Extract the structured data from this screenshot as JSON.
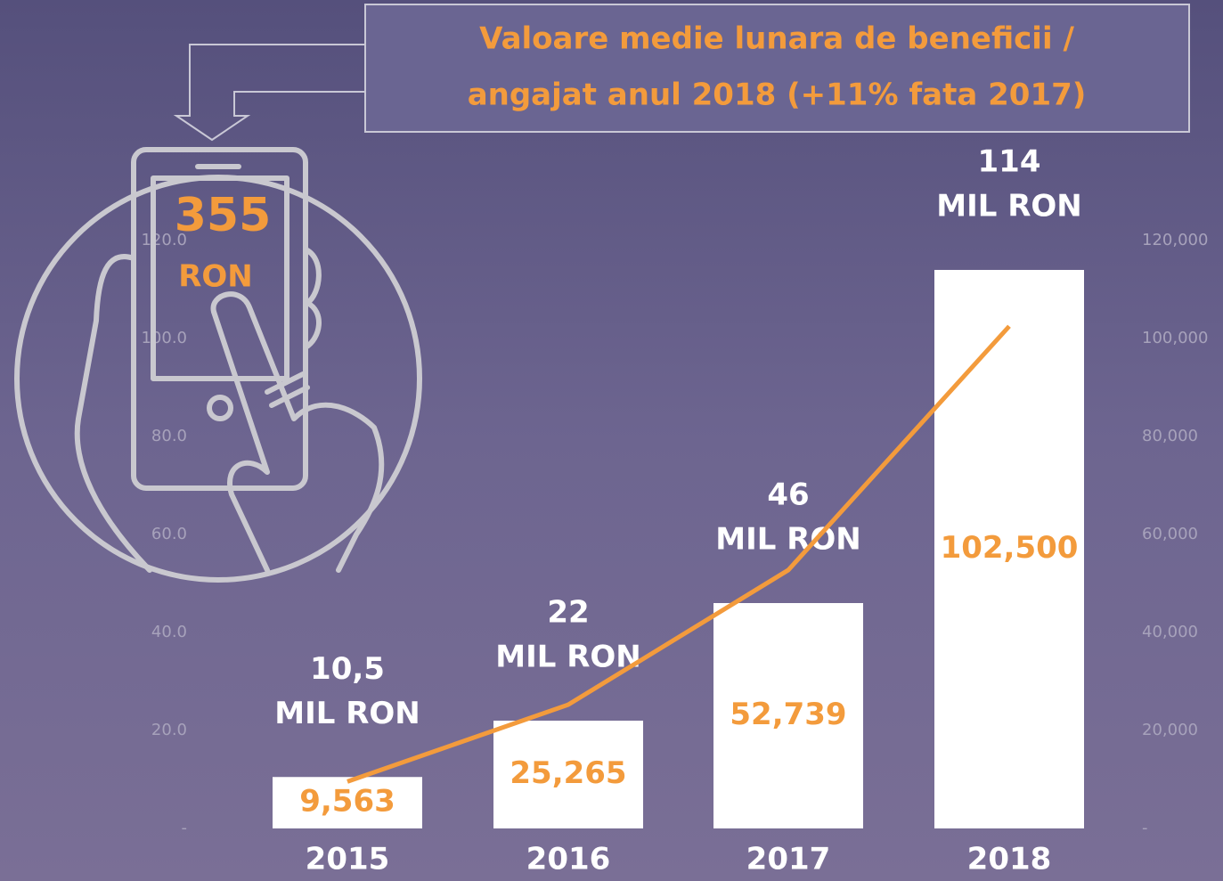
{
  "chart_data": {
    "type": "bar",
    "callout": [
      "Valoare medie lunara de beneficii /",
      "angajat anul 2018 (+11% fata 2017)"
    ],
    "highlight": {
      "value": "355",
      "unit": "RON"
    },
    "categories": [
      "2015",
      "2016",
      "2017",
      "2018"
    ],
    "series": [
      {
        "type": "bar",
        "color": "#ffffff",
        "values": [
          10.5,
          22,
          46,
          114
        ],
        "value_labels": [
          "10,5",
          "22",
          "46",
          "114"
        ],
        "unit_label": "MIL RON"
      },
      {
        "type": "line",
        "axis": "y2",
        "color": "#f39b3c",
        "values": [
          9563,
          25265,
          52739,
          102500
        ],
        "value_labels": [
          "9,563",
          "25,265",
          "52,739",
          "102,500"
        ]
      }
    ],
    "ylim": [
      0,
      120
    ],
    "yticks": [
      {
        "value": 0,
        "label": "-"
      },
      {
        "value": 20,
        "label": "20.0"
      },
      {
        "value": 40,
        "label": "40.0"
      },
      {
        "value": 60,
        "label": "60.0"
      },
      {
        "value": 80,
        "label": "80.0"
      },
      {
        "value": 100,
        "label": "100.0"
      },
      {
        "value": 120,
        "label": "120.0"
      }
    ],
    "y2lim": [
      0,
      120000
    ],
    "y2ticks": [
      {
        "value": 0,
        "label": "-"
      },
      {
        "value": 20000,
        "label": "20,000"
      },
      {
        "value": 40000,
        "label": "40,000"
      },
      {
        "value": 60000,
        "label": "60,000"
      },
      {
        "value": 80000,
        "label": "80,000"
      },
      {
        "value": 100000,
        "label": "100,000"
      },
      {
        "value": 120000,
        "label": "120,000"
      }
    ]
  }
}
